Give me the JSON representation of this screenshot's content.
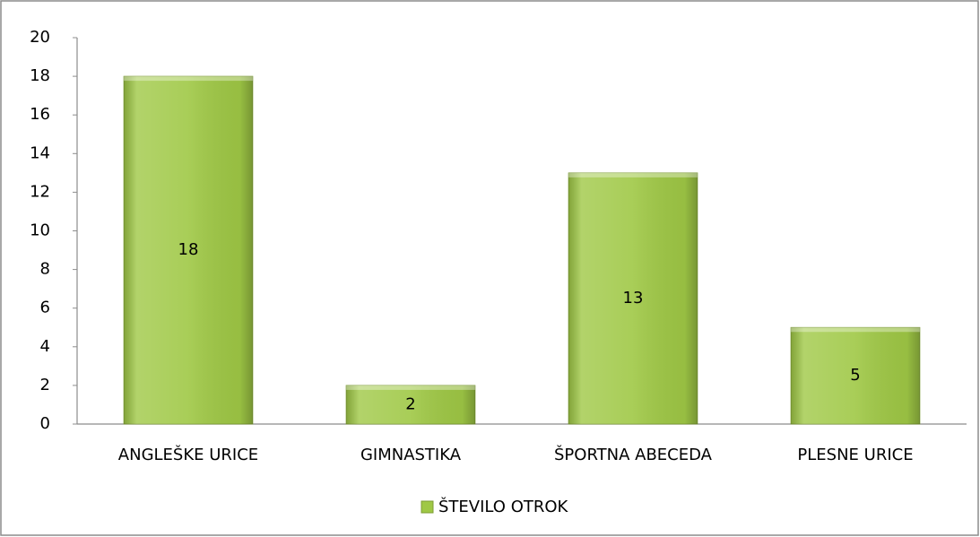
{
  "chart_data": {
    "type": "bar",
    "categories": [
      "ANGLEŠKE URICE",
      "GIMNASTIKA",
      "ŠPORTNA ABECEDA",
      "PLESNE URICE"
    ],
    "series": [
      {
        "name": "ŠTEVILO OTROK",
        "color": "#9fc845",
        "values": [
          18,
          2,
          13,
          5
        ]
      }
    ],
    "ylim": [
      0,
      20
    ],
    "yticks": [
      0,
      2,
      4,
      6,
      8,
      10,
      12,
      14,
      16,
      18,
      20
    ],
    "grid": false,
    "legend": "bottom",
    "data_labels": true
  }
}
